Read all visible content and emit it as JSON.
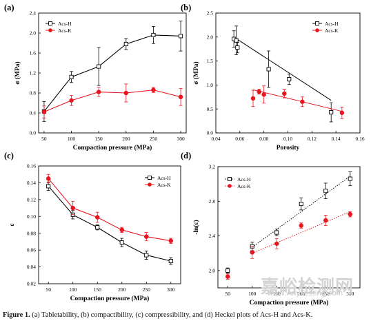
{
  "caption": {
    "label": "Figure 1.",
    "text": " (a) Tabletability, (b) compactibility, (c) compressibility, and (d) Heckel plots of Acs-H and Acs-K."
  },
  "watermark": {
    "cn": "嘉峪检测网",
    "url": "www.AnyTesting.com"
  },
  "colors": {
    "acs_h": "#000000",
    "acs_k": "#e8141e"
  },
  "chart_data": [
    {
      "panel": "(a)",
      "type": "line",
      "xlabel": "Compaction pressure (MPa)",
      "ylabel": "σ (MPa)",
      "xlim": [
        40,
        310
      ],
      "ylim": [
        0,
        2.4
      ],
      "xticks": [
        50,
        100,
        150,
        200,
        250,
        300
      ],
      "yticks": [
        0.0,
        0.4,
        0.8,
        1.2,
        1.6,
        2.0,
        2.4
      ],
      "legend_position": "top-left",
      "series": [
        {
          "name": "Acs-H",
          "marker": "open-square",
          "color": "#000000",
          "x": [
            50,
            100,
            150,
            200,
            250,
            300
          ],
          "y": [
            0.43,
            1.12,
            1.33,
            1.78,
            1.96,
            1.94
          ],
          "err": [
            0.2,
            0.11,
            0.38,
            0.11,
            0.17,
            0.3
          ]
        },
        {
          "name": "Acs-K",
          "marker": "filled-circle",
          "color": "#e8141e",
          "x": [
            50,
            100,
            150,
            200,
            250,
            300
          ],
          "y": [
            0.42,
            0.65,
            0.82,
            0.8,
            0.86,
            0.72
          ],
          "err": [
            0.12,
            0.1,
            0.09,
            0.18,
            0.05,
            0.17
          ]
        }
      ]
    },
    {
      "panel": "(b)",
      "type": "scatter",
      "xlabel": "Porosity",
      "ylabel": "σ (MPa)",
      "xlim": [
        0.04,
        0.16
      ],
      "ylim": [
        0,
        2.5
      ],
      "xticks": [
        0.04,
        0.06,
        0.08,
        0.1,
        0.12,
        0.14,
        0.16
      ],
      "yticks": [
        0.0,
        0.5,
        1.0,
        1.5,
        2.0,
        2.5
      ],
      "legend_position": "top-right",
      "series": [
        {
          "name": "Acs-H",
          "marker": "open-square",
          "color": "#000000",
          "x": [
            0.055,
            0.057,
            0.058,
            0.084,
            0.101,
            0.136
          ],
          "y": [
            1.96,
            1.93,
            1.78,
            1.33,
            1.12,
            0.43
          ],
          "err": [
            0.17,
            0.3,
            0.11,
            0.38,
            0.11,
            0.2
          ],
          "fit_x": [
            0.055,
            0.136
          ],
          "fit_y": [
            2.0,
            0.68
          ]
        },
        {
          "name": "Acs-K",
          "marker": "filled-circle",
          "color": "#e8141e",
          "x": [
            0.071,
            0.076,
            0.08,
            0.097,
            0.112,
            0.145
          ],
          "y": [
            0.72,
            0.86,
            0.8,
            0.82,
            0.65,
            0.42
          ],
          "err": [
            0.17,
            0.05,
            0.18,
            0.09,
            0.1,
            0.12
          ],
          "fit_x": [
            0.071,
            0.145
          ],
          "fit_y": [
            0.9,
            0.45
          ]
        }
      ]
    },
    {
      "panel": "(c)",
      "type": "line",
      "xlabel": "Compaction pressure (MPa)",
      "ylabel": "ε",
      "xlim": [
        30,
        320
      ],
      "ylim": [
        0.02,
        0.16
      ],
      "xticks": [
        50,
        100,
        150,
        200,
        250,
        300
      ],
      "yticks": [
        0.02,
        0.04,
        0.06,
        0.08,
        0.1,
        0.12,
        0.14,
        0.16
      ],
      "legend_position": "top-right",
      "series": [
        {
          "name": "Acs-H",
          "marker": "open-square",
          "color": "#000000",
          "x": [
            50,
            100,
            150,
            200,
            250,
            300
          ],
          "y": [
            0.136,
            0.102,
            0.087,
            0.069,
            0.054,
            0.047
          ],
          "err": [
            0.005,
            0.005,
            0.003,
            0.005,
            0.005,
            0.004
          ]
        },
        {
          "name": "Acs-K",
          "marker": "filled-circle",
          "color": "#e8141e",
          "x": [
            50,
            100,
            150,
            200,
            250,
            300
          ],
          "y": [
            0.145,
            0.11,
            0.099,
            0.084,
            0.076,
            0.071
          ],
          "err": [
            0.005,
            0.008,
            0.006,
            0.003,
            0.005,
            0.003
          ]
        }
      ]
    },
    {
      "panel": "(d)",
      "type": "scatter",
      "xlabel": "Compaction pressure (MPa)",
      "ylabel": "-ln(ε)",
      "xlim": [
        30,
        320
      ],
      "ylim": [
        1.8,
        3.2
      ],
      "xticks": [
        50,
        100,
        150,
        200,
        250,
        300
      ],
      "yticks": [
        2.0,
        2.4,
        2.8,
        3.2
      ],
      "legend_position": "top-left",
      "series": [
        {
          "name": "Acs-H",
          "marker": "open-square",
          "color": "#000000",
          "x": [
            50,
            100,
            150,
            200,
            250,
            300
          ],
          "y": [
            2.0,
            2.28,
            2.44,
            2.77,
            2.92,
            3.06
          ],
          "err": [
            0.03,
            0.05,
            0.04,
            0.07,
            0.09,
            0.08
          ],
          "fit_x": [
            100,
            300
          ],
          "fit_y": [
            2.27,
            3.09
          ]
        },
        {
          "name": "Acs-K",
          "marker": "filled-circle",
          "color": "#e8141e",
          "x": [
            50,
            100,
            150,
            200,
            250,
            300
          ],
          "y": [
            1.93,
            2.21,
            2.31,
            2.52,
            2.58,
            2.65
          ],
          "err": [
            0.03,
            0.07,
            0.06,
            0.03,
            0.06,
            0.03
          ],
          "fit_x": [
            100,
            300
          ],
          "fit_y": [
            2.2,
            2.68
          ]
        }
      ]
    }
  ]
}
